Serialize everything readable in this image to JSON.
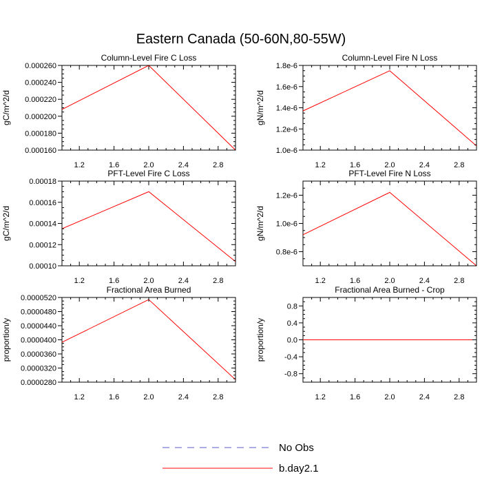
{
  "figure": {
    "title": "Eastern Canada (50-60N,80-55W)"
  },
  "legend": [
    {
      "label": "No Obs",
      "color": "#5a5ac8",
      "dash": true
    },
    {
      "label": "b.day2.1",
      "color": "#ff0000",
      "dash": false
    }
  ],
  "chart_data": [
    {
      "type": "line",
      "title": "Column-Level Fire C Loss",
      "ylabel": "gC/m^2/d",
      "xlim": [
        1.0,
        3.0
      ],
      "ylim": [
        0.00016,
        0.00026
      ],
      "x_ticks": [
        {
          "value": 1.2,
          "label": "1.2"
        },
        {
          "value": 1.6,
          "label": "1.6"
        },
        {
          "value": 2.0,
          "label": "2.0"
        },
        {
          "value": 2.4,
          "label": "2.4"
        },
        {
          "value": 2.8,
          "label": "2.8"
        }
      ],
      "y_ticks": [
        {
          "value": 0.00016,
          "label": "0.000160"
        },
        {
          "value": 0.00018,
          "label": "0.000180"
        },
        {
          "value": 0.0002,
          "label": "0.000200"
        },
        {
          "value": 0.00022,
          "label": "0.000220"
        },
        {
          "value": 0.00024,
          "label": "0.000240"
        },
        {
          "value": 0.00026,
          "label": "0.000260"
        }
      ],
      "series": [
        {
          "name": "b.day2.1",
          "color": "#ff0000",
          "x": [
            1,
            2,
            3
          ],
          "y": [
            0.000208,
            0.00026,
            0.00016
          ]
        }
      ]
    },
    {
      "type": "line",
      "title": "Column-Level Fire N Loss",
      "ylabel": "gN/m^2/d",
      "xlim": [
        1.0,
        3.0
      ],
      "ylim": [
        1e-06,
        1.8e-06
      ],
      "x_ticks": [
        {
          "value": 1.2,
          "label": "1.2"
        },
        {
          "value": 1.6,
          "label": "1.6"
        },
        {
          "value": 2.0,
          "label": "2.0"
        },
        {
          "value": 2.4,
          "label": "2.4"
        },
        {
          "value": 2.8,
          "label": "2.8"
        }
      ],
      "y_ticks": [
        {
          "value": 1e-06,
          "label": "1.0e-6"
        },
        {
          "value": 1.2e-06,
          "label": "1.2e-6"
        },
        {
          "value": 1.4e-06,
          "label": "1.4e-6"
        },
        {
          "value": 1.6e-06,
          "label": "1.6e-6"
        },
        {
          "value": 1.8e-06,
          "label": "1.8e-6"
        }
      ],
      "series": [
        {
          "name": "b.day2.1",
          "color": "#ff0000",
          "x": [
            1,
            2,
            3
          ],
          "y": [
            1.37e-06,
            1.75e-06,
            1.04e-06
          ]
        }
      ]
    },
    {
      "type": "line",
      "title": "PFT-Level Fire C Loss",
      "ylabel": "gC/m^2/d",
      "xlim": [
        1.0,
        3.0
      ],
      "ylim": [
        0.0001,
        0.00018
      ],
      "x_ticks": [
        {
          "value": 1.2,
          "label": "1.2"
        },
        {
          "value": 1.6,
          "label": "1.6"
        },
        {
          "value": 2.0,
          "label": "2.0"
        },
        {
          "value": 2.4,
          "label": "2.4"
        },
        {
          "value": 2.8,
          "label": "2.8"
        }
      ],
      "y_ticks": [
        {
          "value": 0.0001,
          "label": "0.00010"
        },
        {
          "value": 0.00012,
          "label": "0.00012"
        },
        {
          "value": 0.00014,
          "label": "0.00014"
        },
        {
          "value": 0.00016,
          "label": "0.00016"
        },
        {
          "value": 0.00018,
          "label": "0.00018"
        }
      ],
      "series": [
        {
          "name": "b.day2.1",
          "color": "#ff0000",
          "x": [
            1,
            2,
            3
          ],
          "y": [
            0.000135,
            0.00017,
            0.000104
          ]
        }
      ]
    },
    {
      "type": "line",
      "title": "PFT-Level Fire N Loss",
      "ylabel": "gN/m^2/d",
      "xlim": [
        1.0,
        3.0
      ],
      "ylim": [
        7e-07,
        1.3e-06
      ],
      "x_ticks": [
        {
          "value": 1.2,
          "label": "1.2"
        },
        {
          "value": 1.6,
          "label": "1.6"
        },
        {
          "value": 2.0,
          "label": "2.0"
        },
        {
          "value": 2.4,
          "label": "2.4"
        },
        {
          "value": 2.8,
          "label": "2.8"
        }
      ],
      "y_ticks": [
        {
          "value": 8e-07,
          "label": "0.8e-6"
        },
        {
          "value": 1e-06,
          "label": "1.0e-6"
        },
        {
          "value": 1.2e-06,
          "label": "1.2e-6"
        }
      ],
      "series": [
        {
          "name": "b.day2.1",
          "color": "#ff0000",
          "x": [
            1,
            2,
            3
          ],
          "y": [
            9.2e-07,
            1.22e-06,
            7e-07
          ]
        }
      ]
    },
    {
      "type": "line",
      "title": "Fractional Area Burned",
      "ylabel": "proportion/y",
      "xlim": [
        1.0,
        3.0
      ],
      "ylim": [
        2.8e-05,
        5.2e-05
      ],
      "x_ticks": [
        {
          "value": 1.2,
          "label": "1.2"
        },
        {
          "value": 1.6,
          "label": "1.6"
        },
        {
          "value": 2.0,
          "label": "2.0"
        },
        {
          "value": 2.4,
          "label": "2.4"
        },
        {
          "value": 2.8,
          "label": "2.8"
        }
      ],
      "y_ticks": [
        {
          "value": 2.8e-05,
          "label": "0.0000280"
        },
        {
          "value": 3.2e-05,
          "label": "0.0000320"
        },
        {
          "value": 3.6e-05,
          "label": "0.0000360"
        },
        {
          "value": 4e-05,
          "label": "0.0000400"
        },
        {
          "value": 4.4e-05,
          "label": "0.0000440"
        },
        {
          "value": 4.8e-05,
          "label": "0.0000480"
        },
        {
          "value": 5.2e-05,
          "label": "0.0000520"
        }
      ],
      "series": [
        {
          "name": "b.day2.1",
          "color": "#ff0000",
          "x": [
            1,
            2,
            3
          ],
          "y": [
            3.93e-05,
            5.14e-05,
            2.87e-05
          ]
        }
      ]
    },
    {
      "type": "line",
      "title": "Fractional Area Burned - Crop",
      "ylabel": "proportion/y",
      "xlim": [
        1.0,
        3.0
      ],
      "ylim": [
        -1.0,
        1.0
      ],
      "x_ticks": [
        {
          "value": 1.2,
          "label": "1.2"
        },
        {
          "value": 1.6,
          "label": "1.6"
        },
        {
          "value": 2.0,
          "label": "2.0"
        },
        {
          "value": 2.4,
          "label": "2.4"
        },
        {
          "value": 2.8,
          "label": "2.8"
        }
      ],
      "y_ticks": [
        {
          "value": -0.8,
          "label": "-0.8"
        },
        {
          "value": -0.4,
          "label": "-0.4"
        },
        {
          "value": 0.0,
          "label": "0.0"
        },
        {
          "value": 0.4,
          "label": "0.4"
        },
        {
          "value": 0.8,
          "label": "0.8"
        }
      ],
      "series": [
        {
          "name": "b.day2.1",
          "color": "#ff0000",
          "x": [
            1,
            2,
            3
          ],
          "y": [
            0,
            0,
            0
          ]
        }
      ]
    }
  ]
}
